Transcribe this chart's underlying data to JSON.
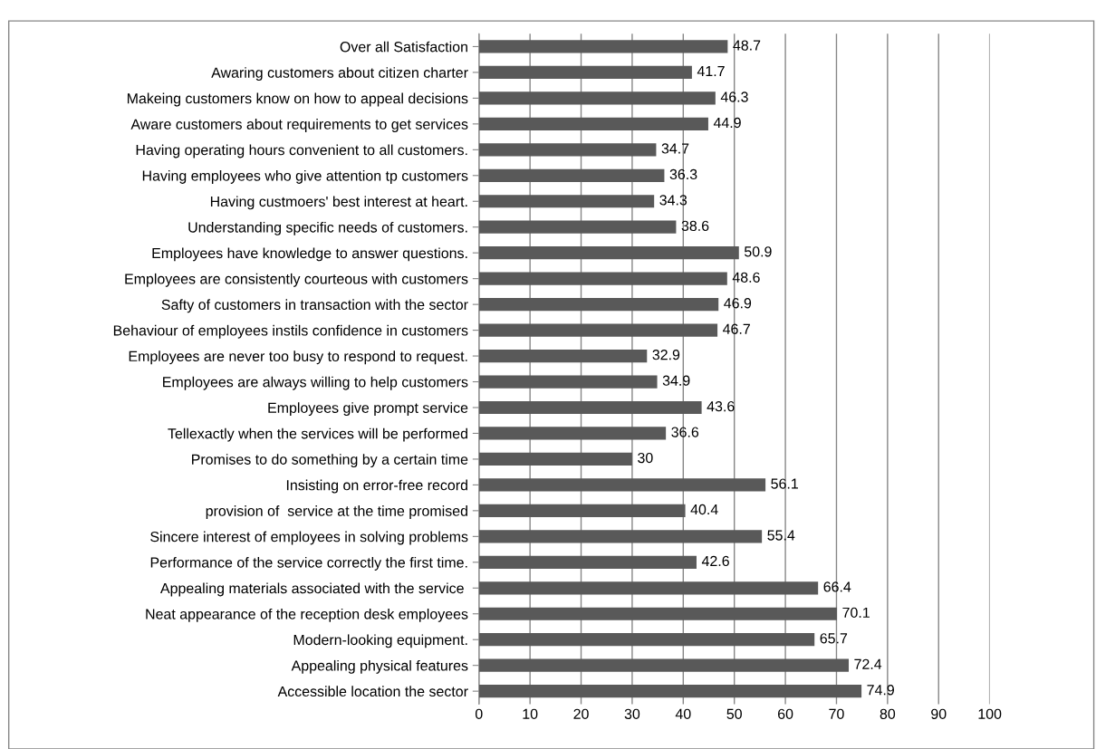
{
  "chart_data": {
    "type": "bar",
    "orientation": "horizontal",
    "categories": [
      "Over all Satisfaction",
      "Awaring customers about citizen charter",
      "Makeing customers know on how to appeal decisions",
      "Aware customers about requirements to get services",
      "Having operating hours convenient to all customers.",
      "Having employees who give attention tp customers",
      "Having custmoers' best interest at heart.",
      "Understanding specific needs of customers.",
      "Employees have knowledge to answer questions.",
      "Employees are consistently courteous with customers",
      "Safty of customers in transaction with the sector",
      "Behaviour of employees instils confidence in customers",
      "Employees are never too busy to respond to request.",
      "Employees are always willing to help customers",
      "Employees give prompt service",
      "Tellexactly when the services will be performed",
      "Promises to do something by a certain time",
      "Insisting on error-free record",
      "provision of  service at the time promised",
      "Sincere interest of employees in solving problems",
      "Performance of the service correctly the first time.",
      "Appealing materials associated with the service ",
      "Neat appearance of the reception desk employees",
      "Modern-looking equipment.",
      "Appealing physical features",
      "Accessible location the sector"
    ],
    "values": [
      48.7,
      41.7,
      46.3,
      44.9,
      34.7,
      36.3,
      34.3,
      38.6,
      50.9,
      48.6,
      46.9,
      46.7,
      32.9,
      34.9,
      43.6,
      36.6,
      30,
      56.1,
      40.4,
      55.4,
      42.6,
      66.4,
      70.1,
      65.7,
      72.4,
      74.9
    ],
    "color": "#595959",
    "data_labels": true,
    "xlim": [
      0,
      100
    ],
    "xticks": [
      0,
      10,
      20,
      30,
      40,
      50,
      60,
      70,
      80,
      90,
      100
    ],
    "grid": "x"
  }
}
